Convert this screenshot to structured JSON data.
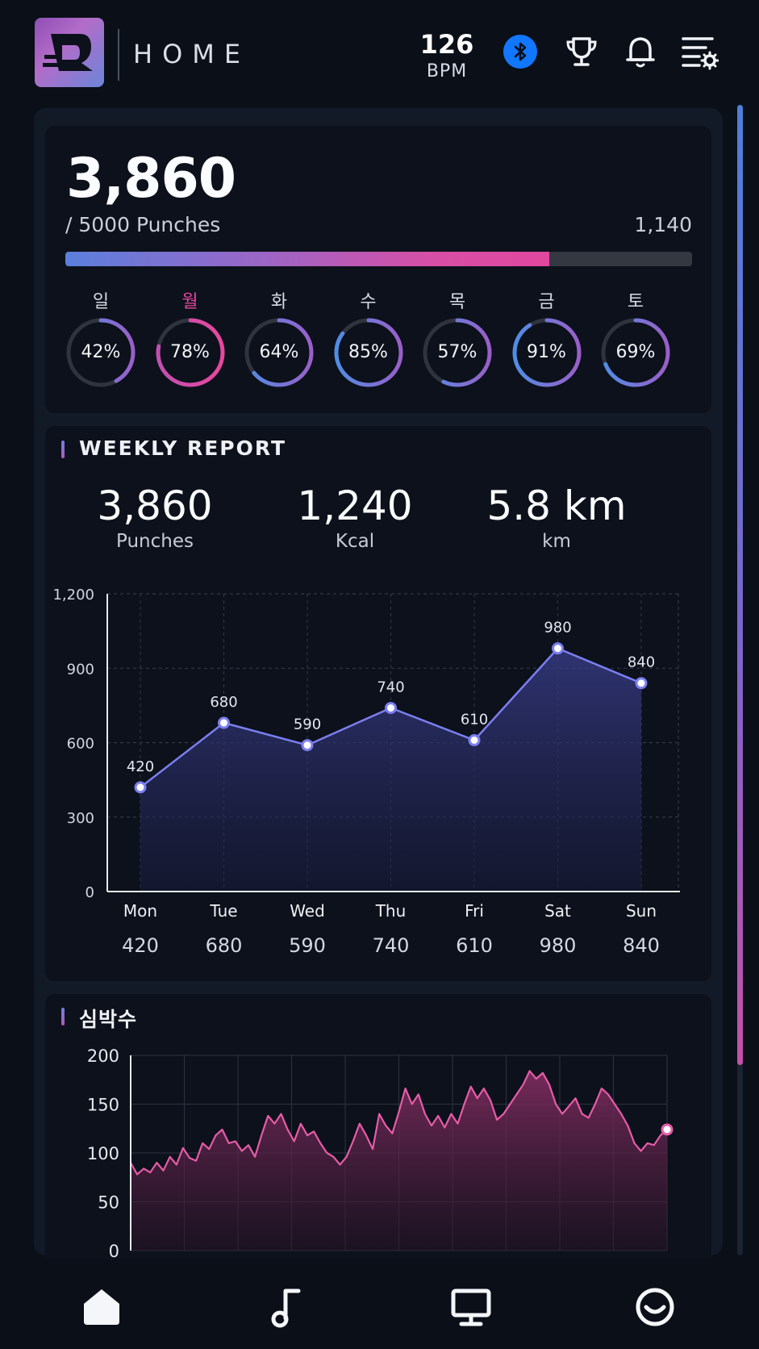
{
  "header": {
    "title": "HOME",
    "bpm_value": "126",
    "bpm_unit": "BPM",
    "icons": [
      "logo-icon",
      "bluetooth-icon",
      "trophy-icon",
      "bell-icon",
      "settings-list-icon"
    ]
  },
  "summary": {
    "count": "3,860",
    "goal": "/ 5000 Punches",
    "remaining": "1,140",
    "progress_fraction": 0.772,
    "days": [
      {
        "label": "일",
        "percent": 42,
        "text": "42%",
        "active": false
      },
      {
        "label": "월",
        "percent": 78,
        "text": "78%",
        "active": true
      },
      {
        "label": "화",
        "percent": 64,
        "text": "64%",
        "active": false
      },
      {
        "label": "수",
        "percent": 85,
        "text": "85%",
        "active": false
      },
      {
        "label": "목",
        "percent": 57,
        "text": "57%",
        "active": false
      },
      {
        "label": "금",
        "percent": 91,
        "text": "91%",
        "active": false
      },
      {
        "label": "토",
        "percent": 69,
        "text": "69%",
        "active": false
      }
    ]
  },
  "weekly": {
    "title": "WEEKLY REPORT",
    "stats": [
      {
        "value": "3,860",
        "unit": "Punches"
      },
      {
        "value": "1,240",
        "unit": "Kcal"
      },
      {
        "value": "5.8 km",
        "unit": "km"
      }
    ]
  },
  "heart": {
    "title": "심박수"
  },
  "chart_data": [
    {
      "type": "line",
      "title": "",
      "categories": [
        "Mon",
        "Tue",
        "Wed",
        "Thu",
        "Fri",
        "Sat",
        "Sun"
      ],
      "values": [
        420,
        680,
        590,
        740,
        610,
        980,
        840
      ],
      "value_labels": [
        "420",
        "680",
        "590",
        "740",
        "610",
        "980",
        "840"
      ],
      "yticks": [
        0,
        300,
        600,
        900,
        1200
      ],
      "ytick_labels": [
        "0",
        "300",
        "600",
        "900",
        "1,200"
      ],
      "ylim": [
        0,
        1200
      ],
      "grid": true,
      "area_fill": true,
      "color": "#7b7ff0"
    },
    {
      "type": "area",
      "title": "",
      "yticks": [
        0,
        50,
        100,
        150,
        200
      ],
      "ytick_labels": [
        "0",
        "50",
        "100",
        "150",
        "200"
      ],
      "ylim": [
        0,
        200
      ],
      "grid": true,
      "color": "#e65ca8",
      "values": [
        90,
        78,
        84,
        80,
        90,
        82,
        96,
        88,
        105,
        95,
        92,
        110,
        104,
        118,
        124,
        110,
        112,
        102,
        108,
        96,
        118,
        138,
        130,
        140,
        124,
        112,
        130,
        118,
        122,
        110,
        100,
        96,
        88,
        96,
        112,
        130,
        118,
        104,
        140,
        128,
        120,
        142,
        166,
        150,
        160,
        140,
        128,
        138,
        126,
        140,
        130,
        150,
        168,
        156,
        166,
        154,
        134,
        140,
        150,
        160,
        170,
        184,
        176,
        182,
        170,
        150,
        140,
        148,
        156,
        140,
        136,
        150,
        166,
        160,
        150,
        140,
        128,
        110,
        102,
        110,
        108,
        118,
        124
      ]
    }
  ]
}
